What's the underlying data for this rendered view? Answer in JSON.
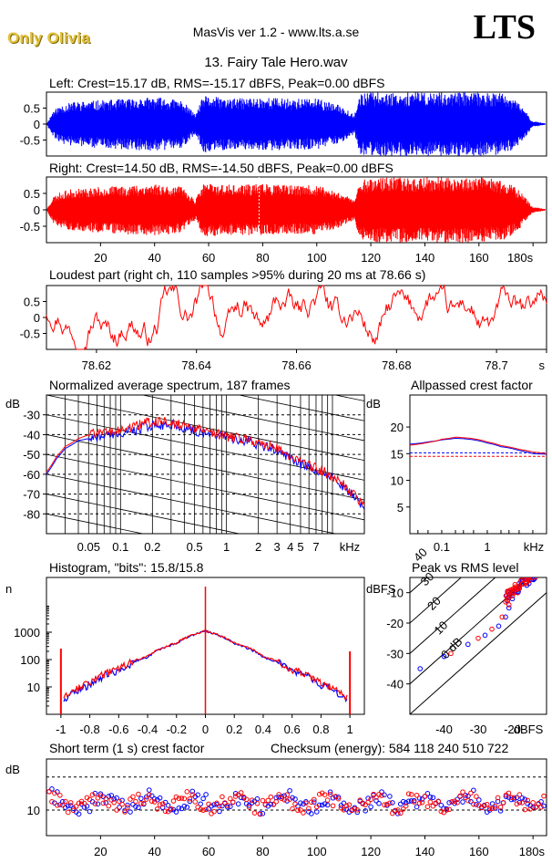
{
  "header": {
    "artist": "Only Olivia",
    "app": "MasVis ver 1.2 - www.lts.a.se",
    "brand": "LTS",
    "track": "13. Fairy Tale Hero.wav"
  },
  "colors": {
    "left": "#0000ff",
    "right": "#ff0000",
    "axis": "#000000"
  },
  "chart_data": [
    {
      "id": "left-waveform",
      "type": "line",
      "title": "Left: Crest=15.17 dB, RMS=-15.17 dBFS, Peak=0.00 dBFS",
      "ylim": [
        -1,
        1
      ],
      "yticks": [
        "0.5",
        "0",
        "-0.5"
      ],
      "xlim": [
        0,
        185
      ],
      "envelope": {
        "x": [
          0,
          2,
          5,
          10,
          20,
          30,
          40,
          50,
          55,
          58,
          62,
          70,
          80,
          90,
          100,
          110,
          114,
          116,
          120,
          130,
          140,
          150,
          160,
          170,
          176,
          180,
          185
        ],
        "amp": [
          0.05,
          0.4,
          0.6,
          0.7,
          0.75,
          0.8,
          0.85,
          0.75,
          0.3,
          0.9,
          0.85,
          0.8,
          0.85,
          0.8,
          0.8,
          0.55,
          0.3,
          0.95,
          1.0,
          1.0,
          1.0,
          1.0,
          1.0,
          0.95,
          0.6,
          0.1,
          0.02
        ]
      }
    },
    {
      "id": "right-waveform",
      "type": "line",
      "title": "Right: Crest=14.50 dB, RMS=-14.50 dBFS, Peak=0.00 dBFS",
      "ylim": [
        -1,
        1
      ],
      "yticks": [
        "0.5",
        "0",
        "-0.5"
      ],
      "xlim": [
        0,
        185
      ],
      "xticks": [
        "20",
        "40",
        "60",
        "80",
        "100",
        "120",
        "140",
        "160",
        "180s"
      ],
      "marker_x": 78.66,
      "envelope": {
        "x": [
          0,
          2,
          5,
          10,
          20,
          30,
          40,
          50,
          55,
          58,
          62,
          70,
          80,
          90,
          100,
          110,
          114,
          116,
          120,
          130,
          140,
          150,
          160,
          170,
          176,
          180,
          185
        ],
        "amp": [
          0.05,
          0.4,
          0.55,
          0.65,
          0.7,
          0.75,
          0.8,
          0.7,
          0.3,
          0.85,
          0.8,
          0.75,
          0.8,
          0.75,
          0.75,
          0.5,
          0.3,
          0.9,
          1.0,
          1.0,
          1.0,
          1.0,
          1.0,
          0.9,
          0.55,
          0.1,
          0.02
        ]
      }
    },
    {
      "id": "loudest-part",
      "type": "line",
      "title": "Loudest part (right ch, 110 samples >95% during 20 ms at 78.66 s)",
      "ylim": [
        -1,
        1
      ],
      "yticks": [
        "0.5",
        "0",
        "-0.5"
      ],
      "xlim": [
        78.61,
        78.71
      ],
      "xticks": [
        "78.62",
        "78.64",
        "78.66",
        "78.68",
        "78.7",
        "s"
      ]
    },
    {
      "id": "average-spectrum",
      "type": "line",
      "title": "Normalized average spectrum, 187 frames",
      "ylabel": "dB",
      "xlabel": "kHz",
      "ylim": [
        -90,
        -20
      ],
      "yticks": [
        "-30",
        "-40",
        "-50",
        "-60",
        "-70",
        "-80"
      ],
      "xticks": [
        "0.05",
        "0.1",
        "0.2",
        "0.5",
        "1",
        "2",
        "3",
        "4",
        "5",
        "7",
        "kHz"
      ],
      "series": [
        {
          "color": "blue",
          "x": [
            0.02,
            0.025,
            0.03,
            0.04,
            0.05,
            0.07,
            0.1,
            0.15,
            0.2,
            0.3,
            0.5,
            0.7,
            1,
            1.5,
            2,
            3,
            4,
            5,
            7,
            10,
            15,
            20
          ],
          "values": [
            -60,
            -52,
            -47,
            -43,
            -42,
            -41,
            -40,
            -37,
            -35,
            -35,
            -38,
            -40,
            -42,
            -43,
            -45,
            -48,
            -52,
            -55,
            -58,
            -62,
            -70,
            -78
          ]
        },
        {
          "color": "red",
          "x": [
            0.02,
            0.025,
            0.03,
            0.04,
            0.05,
            0.07,
            0.1,
            0.15,
            0.2,
            0.3,
            0.5,
            0.7,
            1,
            1.5,
            2,
            3,
            4,
            5,
            7,
            10,
            15,
            20
          ],
          "values": [
            -59,
            -51,
            -46,
            -42,
            -40,
            -39,
            -38,
            -35,
            -33,
            -34,
            -37,
            -39,
            -41,
            -42,
            -44,
            -47,
            -51,
            -54,
            -57,
            -61,
            -69,
            -77
          ]
        }
      ]
    },
    {
      "id": "allpassed-crest",
      "type": "line",
      "title": "Allpassed crest factor",
      "ylabel": "dB",
      "xlabel": "kHz",
      "ylim": [
        0,
        26
      ],
      "yticks": [
        "20",
        "15",
        "10",
        "5"
      ],
      "xticks": [
        "0.1",
        "1",
        "kHz"
      ],
      "reference_lines": [
        15.17,
        14.5
      ],
      "series": [
        {
          "color": "blue",
          "x": [
            0.02,
            0.05,
            0.1,
            0.2,
            0.5,
            1,
            2,
            5,
            10,
            20
          ],
          "values": [
            16.8,
            17.2,
            17.6,
            17.9,
            17.6,
            17.0,
            16.3,
            15.6,
            15.0,
            14.9
          ]
        },
        {
          "color": "red",
          "x": [
            0.02,
            0.05,
            0.1,
            0.2,
            0.5,
            1,
            2,
            5,
            10,
            20
          ],
          "values": [
            16.6,
            17.1,
            17.7,
            18.1,
            17.8,
            17.2,
            16.5,
            15.8,
            15.3,
            15.0
          ]
        }
      ]
    },
    {
      "id": "histogram",
      "type": "line",
      "title": "Histogram, \"bits\": 15.8/15.8",
      "ylabel": "n",
      "ylim_log": [
        1,
        100000
      ],
      "yticks": [
        "1000",
        "100",
        "10"
      ],
      "xticks": [
        "-1",
        "-0.8",
        "-0.6",
        "-0.4",
        "-0.2",
        "0",
        "0.2",
        "0.4",
        "0.6",
        "0.8",
        "1"
      ],
      "series": [
        {
          "color": "blue",
          "x": [
            -0.98,
            -0.8,
            -0.6,
            -0.4,
            -0.2,
            0,
            0.2,
            0.4,
            0.6,
            0.8,
            0.98
          ],
          "values": [
            3,
            12,
            40,
            120,
            380,
            1100,
            380,
            120,
            40,
            12,
            3
          ]
        },
        {
          "color": "red",
          "x": [
            -0.98,
            -0.8,
            -0.6,
            -0.4,
            -0.2,
            0,
            0.2,
            0.4,
            0.6,
            0.8,
            0.98
          ],
          "values": [
            4,
            14,
            45,
            130,
            400,
            1100,
            400,
            130,
            45,
            14,
            4
          ]
        }
      ]
    },
    {
      "id": "peak-vs-rms",
      "type": "scatter",
      "title": "Peak vs RMS level",
      "ylabel": "dBFS",
      "xlabel": "dBFS",
      "xlim": [
        -50,
        -10
      ],
      "ylim": [
        -50,
        -5
      ],
      "xticks": [
        "-40",
        "-30",
        "-20",
        "dBFS"
      ],
      "yticks": [
        "-10",
        "-20",
        "-30",
        "-40"
      ],
      "diagonal_labels": [
        "40",
        "30",
        "20",
        "10",
        "0 dB"
      ],
      "series": [
        {
          "color": "blue",
          "x": [
            -47,
            -40,
            -33,
            -28,
            -24,
            -22,
            -21,
            -20,
            -19,
            -18,
            -17
          ],
          "values": [
            -35,
            -31,
            -27,
            -24,
            -21,
            -18,
            -15,
            -12,
            -9,
            -7,
            -6
          ]
        },
        {
          "color": "red",
          "x": [
            -38,
            -30,
            -26,
            -23,
            -21,
            -20,
            -19,
            -18,
            -17,
            -16,
            -15
          ],
          "values": [
            -30,
            -25,
            -22,
            -18,
            -14,
            -11,
            -9,
            -8,
            -7,
            -7,
            -6
          ]
        }
      ]
    },
    {
      "id": "short-term-crest",
      "type": "scatter",
      "title": "Short term (1 s) crest factor",
      "checksum": "Checksum (energy):   584 118 240 510 722",
      "ylabel": "dB",
      "yticks": [
        "10"
      ],
      "ylim": [
        6,
        18
      ],
      "xlim": [
        0,
        185
      ],
      "xticks": [
        "20",
        "40",
        "60",
        "80",
        "100",
        "120",
        "140",
        "160",
        "180s"
      ],
      "reference_lines": [
        15.17,
        10
      ]
    }
  ]
}
